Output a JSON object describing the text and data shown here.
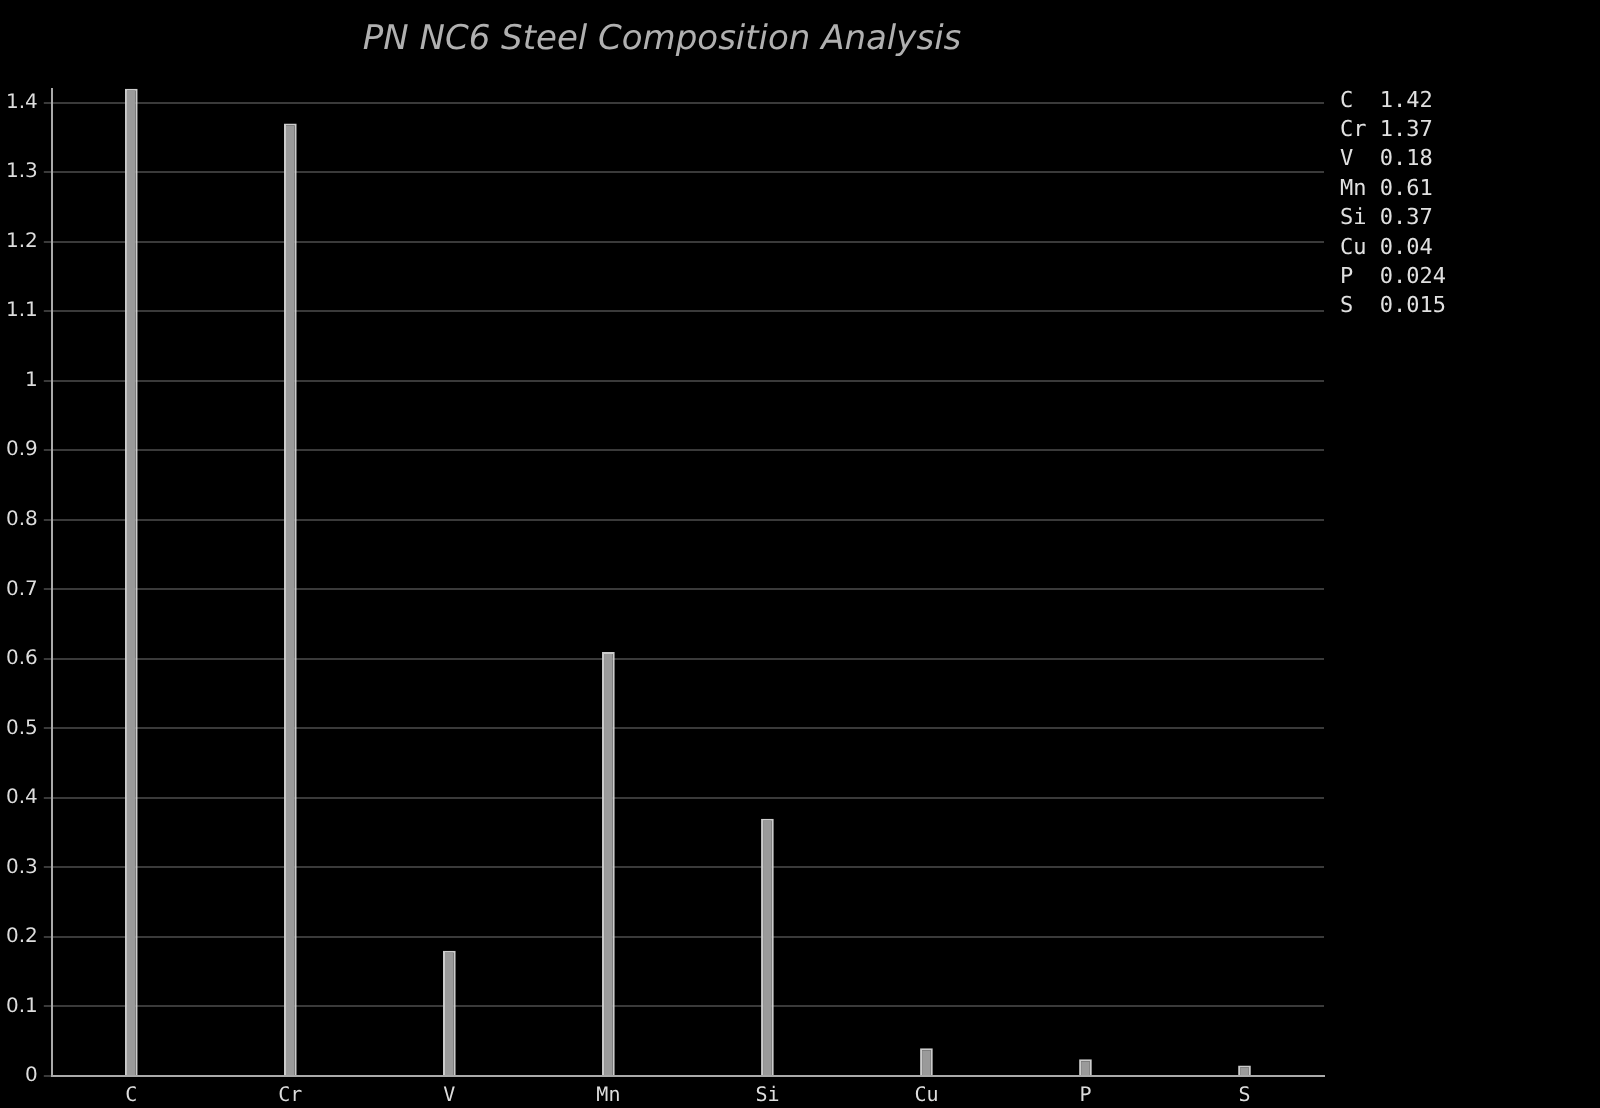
{
  "chart_data": {
    "type": "bar",
    "title": "PN NC6 Steel Composition Analysis",
    "categories": [
      "C",
      "Cr",
      "V",
      "Mn",
      "Si",
      "Cu",
      "P",
      "S"
    ],
    "values": [
      1.42,
      1.37,
      0.18,
      0.61,
      0.37,
      0.04,
      0.024,
      0.015
    ],
    "color": "#9a9a9a",
    "ylim": [
      0,
      1.42
    ],
    "yticks": [
      0,
      0.1,
      0.2,
      0.3,
      0.4,
      0.5,
      0.6,
      0.7,
      0.8,
      0.9,
      1,
      1.1,
      1.2,
      1.3,
      1.4
    ],
    "grid": "y",
    "legend": false,
    "annotations": [
      "C  1.42",
      "Cr 1.37",
      "V  0.18",
      "Mn 0.61",
      "Si 0.37",
      "Cu 0.04",
      "P  0.024",
      "S  0.015"
    ]
  }
}
